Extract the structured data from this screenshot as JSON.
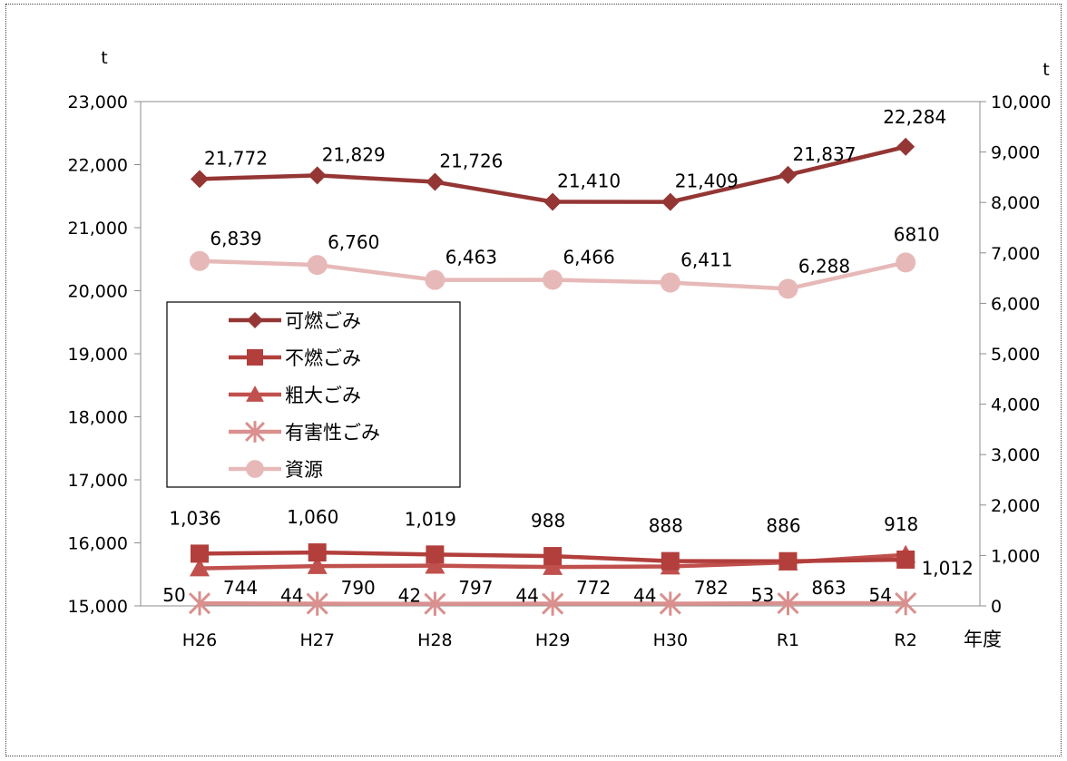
{
  "chart_data": {
    "type": "line",
    "categories": [
      "H26",
      "H27",
      "H28",
      "H29",
      "H30",
      "R1",
      "R2"
    ],
    "x_unit": "年度",
    "y_left": {
      "unit": "t",
      "ylim": [
        15000,
        23000
      ],
      "ticks": [
        "15,000",
        "16,000",
        "17,000",
        "18,000",
        "19,000",
        "20,000",
        "21,000",
        "22,000",
        "23,000"
      ]
    },
    "y_right": {
      "unit": "t",
      "ylim": [
        0,
        10000
      ],
      "ticks": [
        "0",
        "1,000",
        "2,000",
        "3,000",
        "4,000",
        "5,000",
        "6,000",
        "7,000",
        "8,000",
        "9,000",
        "10,000"
      ]
    },
    "grid": false,
    "legend_position": "left",
    "series": [
      {
        "name": "可燃ごみ",
        "axis": "left",
        "marker": "diamond",
        "color": "#943634",
        "values": [
          21772,
          21829,
          21726,
          21410,
          21409,
          21837,
          22284
        ],
        "labels": [
          "21,772",
          "21,829",
          "21,726",
          "21,410",
          "21,409",
          "21,837",
          "22,284"
        ]
      },
      {
        "name": "不燃ごみ",
        "axis": "right",
        "marker": "square",
        "color": "#b23f3c",
        "values": [
          1036,
          1060,
          1019,
          988,
          888,
          886,
          918
        ],
        "labels": [
          "1,036",
          "1,060",
          "1,019",
          "988",
          "888",
          "886",
          "918"
        ]
      },
      {
        "name": "粗大ごみ",
        "axis": "right",
        "marker": "triangle",
        "color": "#c0504d",
        "values": [
          744,
          790,
          797,
          772,
          782,
          863,
          1012
        ],
        "labels": [
          "744",
          "790",
          "797",
          "772",
          "782",
          "863",
          "1,012"
        ]
      },
      {
        "name": "有害性ごみ",
        "axis": "right",
        "marker": "star",
        "color": "#d9908e",
        "values": [
          50,
          44,
          42,
          44,
          44,
          53,
          54
        ],
        "labels": [
          "50",
          "44",
          "42",
          "44",
          "44",
          "53",
          "54"
        ]
      },
      {
        "name": "資源",
        "axis": "right",
        "marker": "circle",
        "color": "#e6b9b8",
        "values": [
          6839,
          6760,
          6463,
          6466,
          6411,
          6288,
          6810
        ],
        "labels": [
          "6,839",
          "6,760",
          "6,463",
          "6,466",
          "6,411",
          "6,288",
          "6810"
        ]
      }
    ]
  }
}
